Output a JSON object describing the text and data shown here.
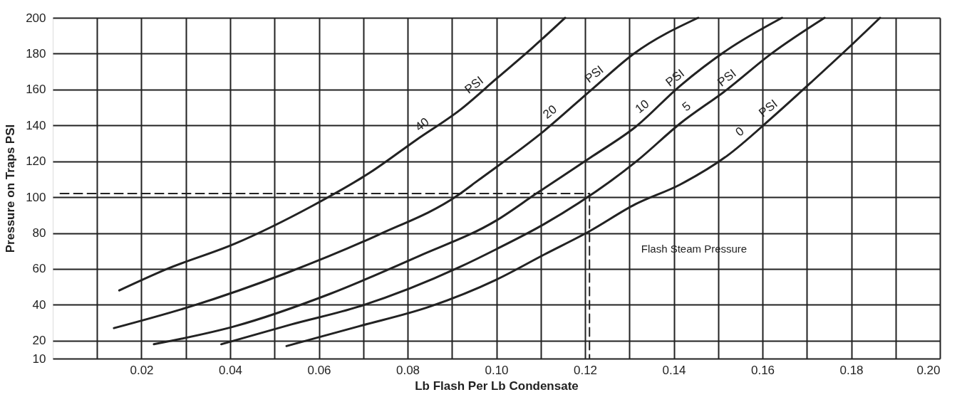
{
  "chart_data": {
    "type": "line",
    "xlabel": "Lb Flash Per Lb Condensate",
    "ylabel": "Pressure on Traps PSI",
    "xlim": [
      0,
      0.2
    ],
    "ylim": [
      10,
      200
    ],
    "xticks": [
      {
        "value": 0.01,
        "label": null
      },
      0.02,
      {
        "value": 0.03,
        "label": null
      },
      0.04,
      {
        "value": 0.05,
        "label": null
      },
      0.06,
      {
        "value": 0.07,
        "label": null
      },
      0.08,
      {
        "value": 0.09,
        "label": null
      },
      {
        "value": 0.1,
        "label": "0.10"
      },
      {
        "value": 0.11,
        "label": null
      },
      0.12,
      {
        "value": 0.13,
        "label": null
      },
      0.14,
      {
        "value": 0.15,
        "label": null
      },
      0.16,
      {
        "value": 0.17,
        "label": null
      },
      0.18,
      {
        "value": 0.19,
        "label": null
      },
      {
        "value": 0.2,
        "label": "0.20"
      }
    ],
    "yticks": [
      10,
      20,
      40,
      60,
      80,
      100,
      120,
      140,
      160,
      180,
      200
    ],
    "grid": true,
    "series": [
      {
        "color": "#222222",
        "x": [
          0.015,
          0.0258,
          0.041,
          0.0584,
          0.0717,
          0.082,
          0.092,
          0.1,
          0.108,
          0.1155
        ],
        "values": [
          48,
          60,
          74,
          95,
          114,
          132,
          149,
          166,
          183,
          200
        ]
      },
      {
        "color": "#222222",
        "x": [
          0.0138,
          0.031,
          0.053,
          0.0734,
          0.0913,
          0.0957,
          0.1108,
          0.1215,
          0.131,
          0.1455
        ],
        "values": [
          27,
          39,
          58,
          79,
          101,
          109,
          137,
          160,
          180,
          200
        ]
      },
      {
        "color": "#222222",
        "x": [
          0.0228,
          0.041,
          0.0624,
          0.0824,
          0.1,
          0.109,
          0.1218,
          0.1313,
          0.1414,
          0.152,
          0.1644
        ],
        "values": [
          18,
          28,
          46,
          67,
          87,
          102,
          123,
          139,
          162,
          182,
          200
        ]
      },
      {
        "color": "#222222",
        "x": [
          0.038,
          0.0537,
          0.069,
          0.0917,
          0.1,
          0.1108,
          0.1316,
          0.1414,
          0.152,
          0.162,
          0.174
        ],
        "values": [
          18,
          29,
          39,
          61,
          71,
          85,
          120,
          141,
          160,
          180,
          200
        ]
      },
      {
        "color": "#222222",
        "x": [
          0.0527,
          0.069,
          0.085,
          0.1,
          0.1108,
          0.121,
          0.1313,
          0.1414,
          0.152,
          0.162,
          0.1714,
          0.181,
          0.1865
        ],
        "values": [
          17,
          28,
          39,
          54,
          68,
          81,
          96,
          107,
          123,
          144,
          165,
          187,
          200
        ]
      },
      {
        "color": "#222222",
        "line_style": "dashed",
        "x": [
          0.0017,
          0.121,
          0.121
        ],
        "values": [
          102,
          102,
          10
        ]
      }
    ],
    "annotations": [
      {
        "text": "40",
        "x": 0.086,
        "y": 139
      },
      {
        "text": "PSI",
        "x": 0.0977,
        "y": 161
      },
      {
        "text": "20",
        "x": 0.1148,
        "y": 146
      },
      {
        "text": "PSI",
        "x": 0.1248,
        "y": 167
      },
      {
        "text": "10",
        "x": 0.1356,
        "y": 149
      },
      {
        "text": "PSI",
        "x": 0.143,
        "y": 165
      },
      {
        "text": "5",
        "x": 0.1456,
        "y": 149
      },
      {
        "text": "PSI",
        "x": 0.1547,
        "y": 165
      },
      {
        "text": "0",
        "x": 0.1576,
        "y": 135
      },
      {
        "text": "PSI",
        "x": 0.164,
        "y": 148
      },
      "Flash Steam Pressure"
    ]
  }
}
